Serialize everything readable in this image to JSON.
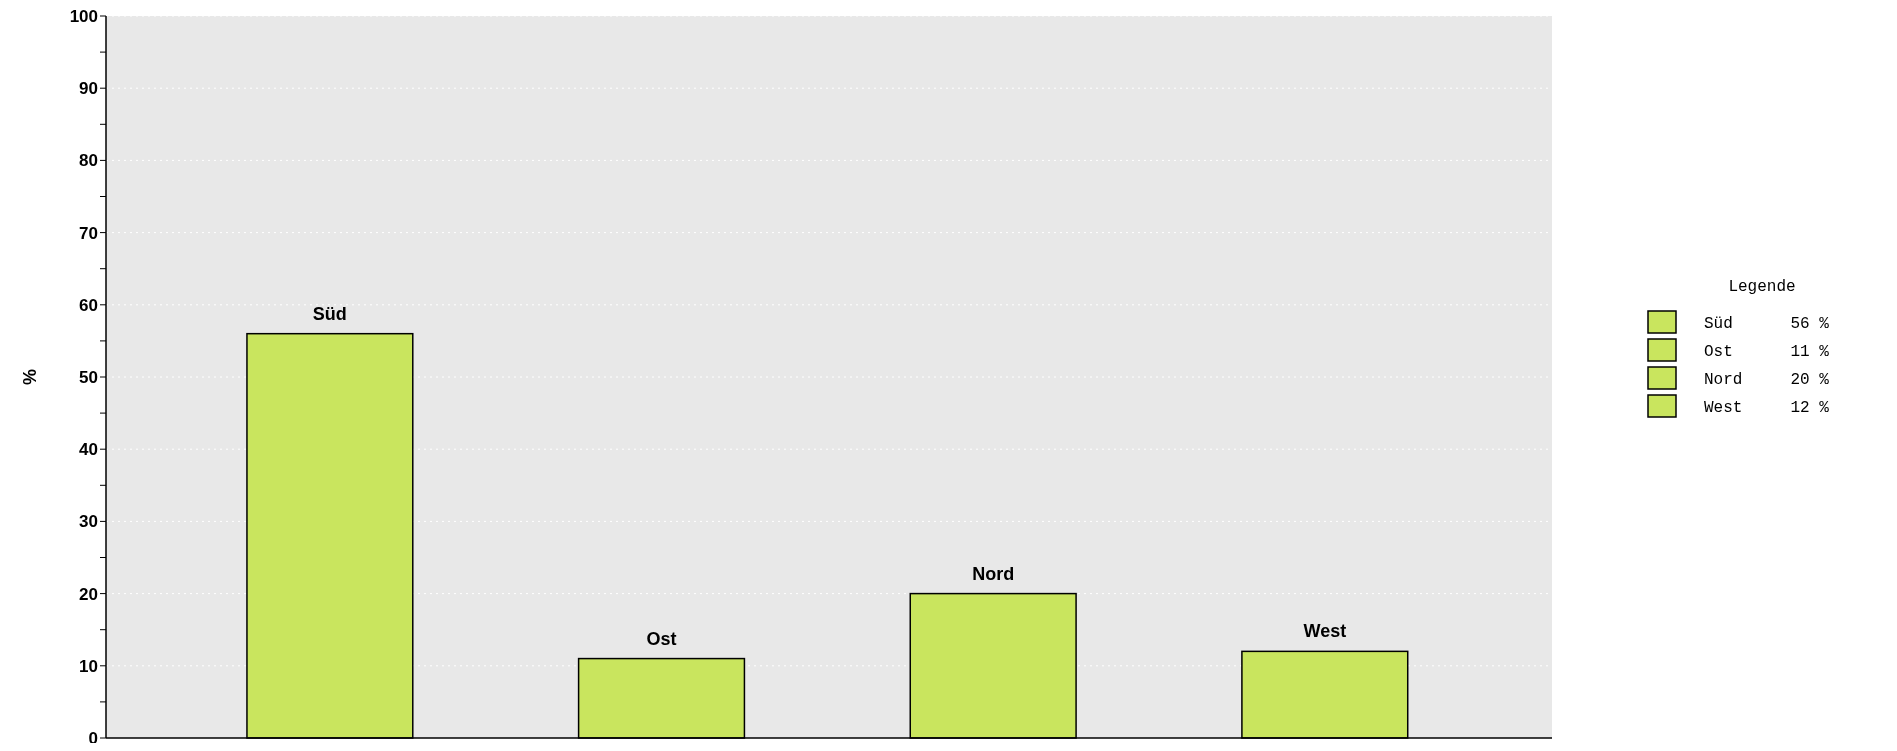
{
  "chart_data": {
    "type": "bar",
    "ylabel": "%",
    "legend_title": "Legende",
    "categories": [
      "Süd",
      "Ost",
      "Nord",
      "West"
    ],
    "stacked": true,
    "series": [
      {
        "name": "Süd      56 %",
        "color": "#c9e55e",
        "values": [
          56,
          null,
          null,
          null
        ]
      },
      {
        "name": "Ost      11 %",
        "color": "#c9e55e",
        "values": [
          null,
          11,
          null,
          null
        ]
      },
      {
        "name": "Nord     20 %",
        "color": "#c9e55e",
        "values": [
          null,
          null,
          20,
          null
        ]
      },
      {
        "name": "West     12 %",
        "color": "#c9e55e",
        "values": [
          null,
          null,
          null,
          12
        ]
      }
    ],
    "ylim": [
      0,
      100
    ],
    "yticks": [
      0,
      {
        "value": 5,
        "label": null
      },
      10,
      {
        "value": 15,
        "label": null
      },
      20,
      {
        "value": 25,
        "label": null
      },
      30,
      {
        "value": 35,
        "label": null
      },
      40,
      {
        "value": 45,
        "label": null
      },
      50,
      {
        "value": 55,
        "label": null
      },
      60,
      {
        "value": 65,
        "label": null
      },
      70,
      {
        "value": 75,
        "label": null
      },
      80,
      {
        "value": 85,
        "label": null
      },
      90,
      {
        "value": 95,
        "label": null
      },
      100
    ],
    "grid": "y",
    "legend": "right"
  }
}
